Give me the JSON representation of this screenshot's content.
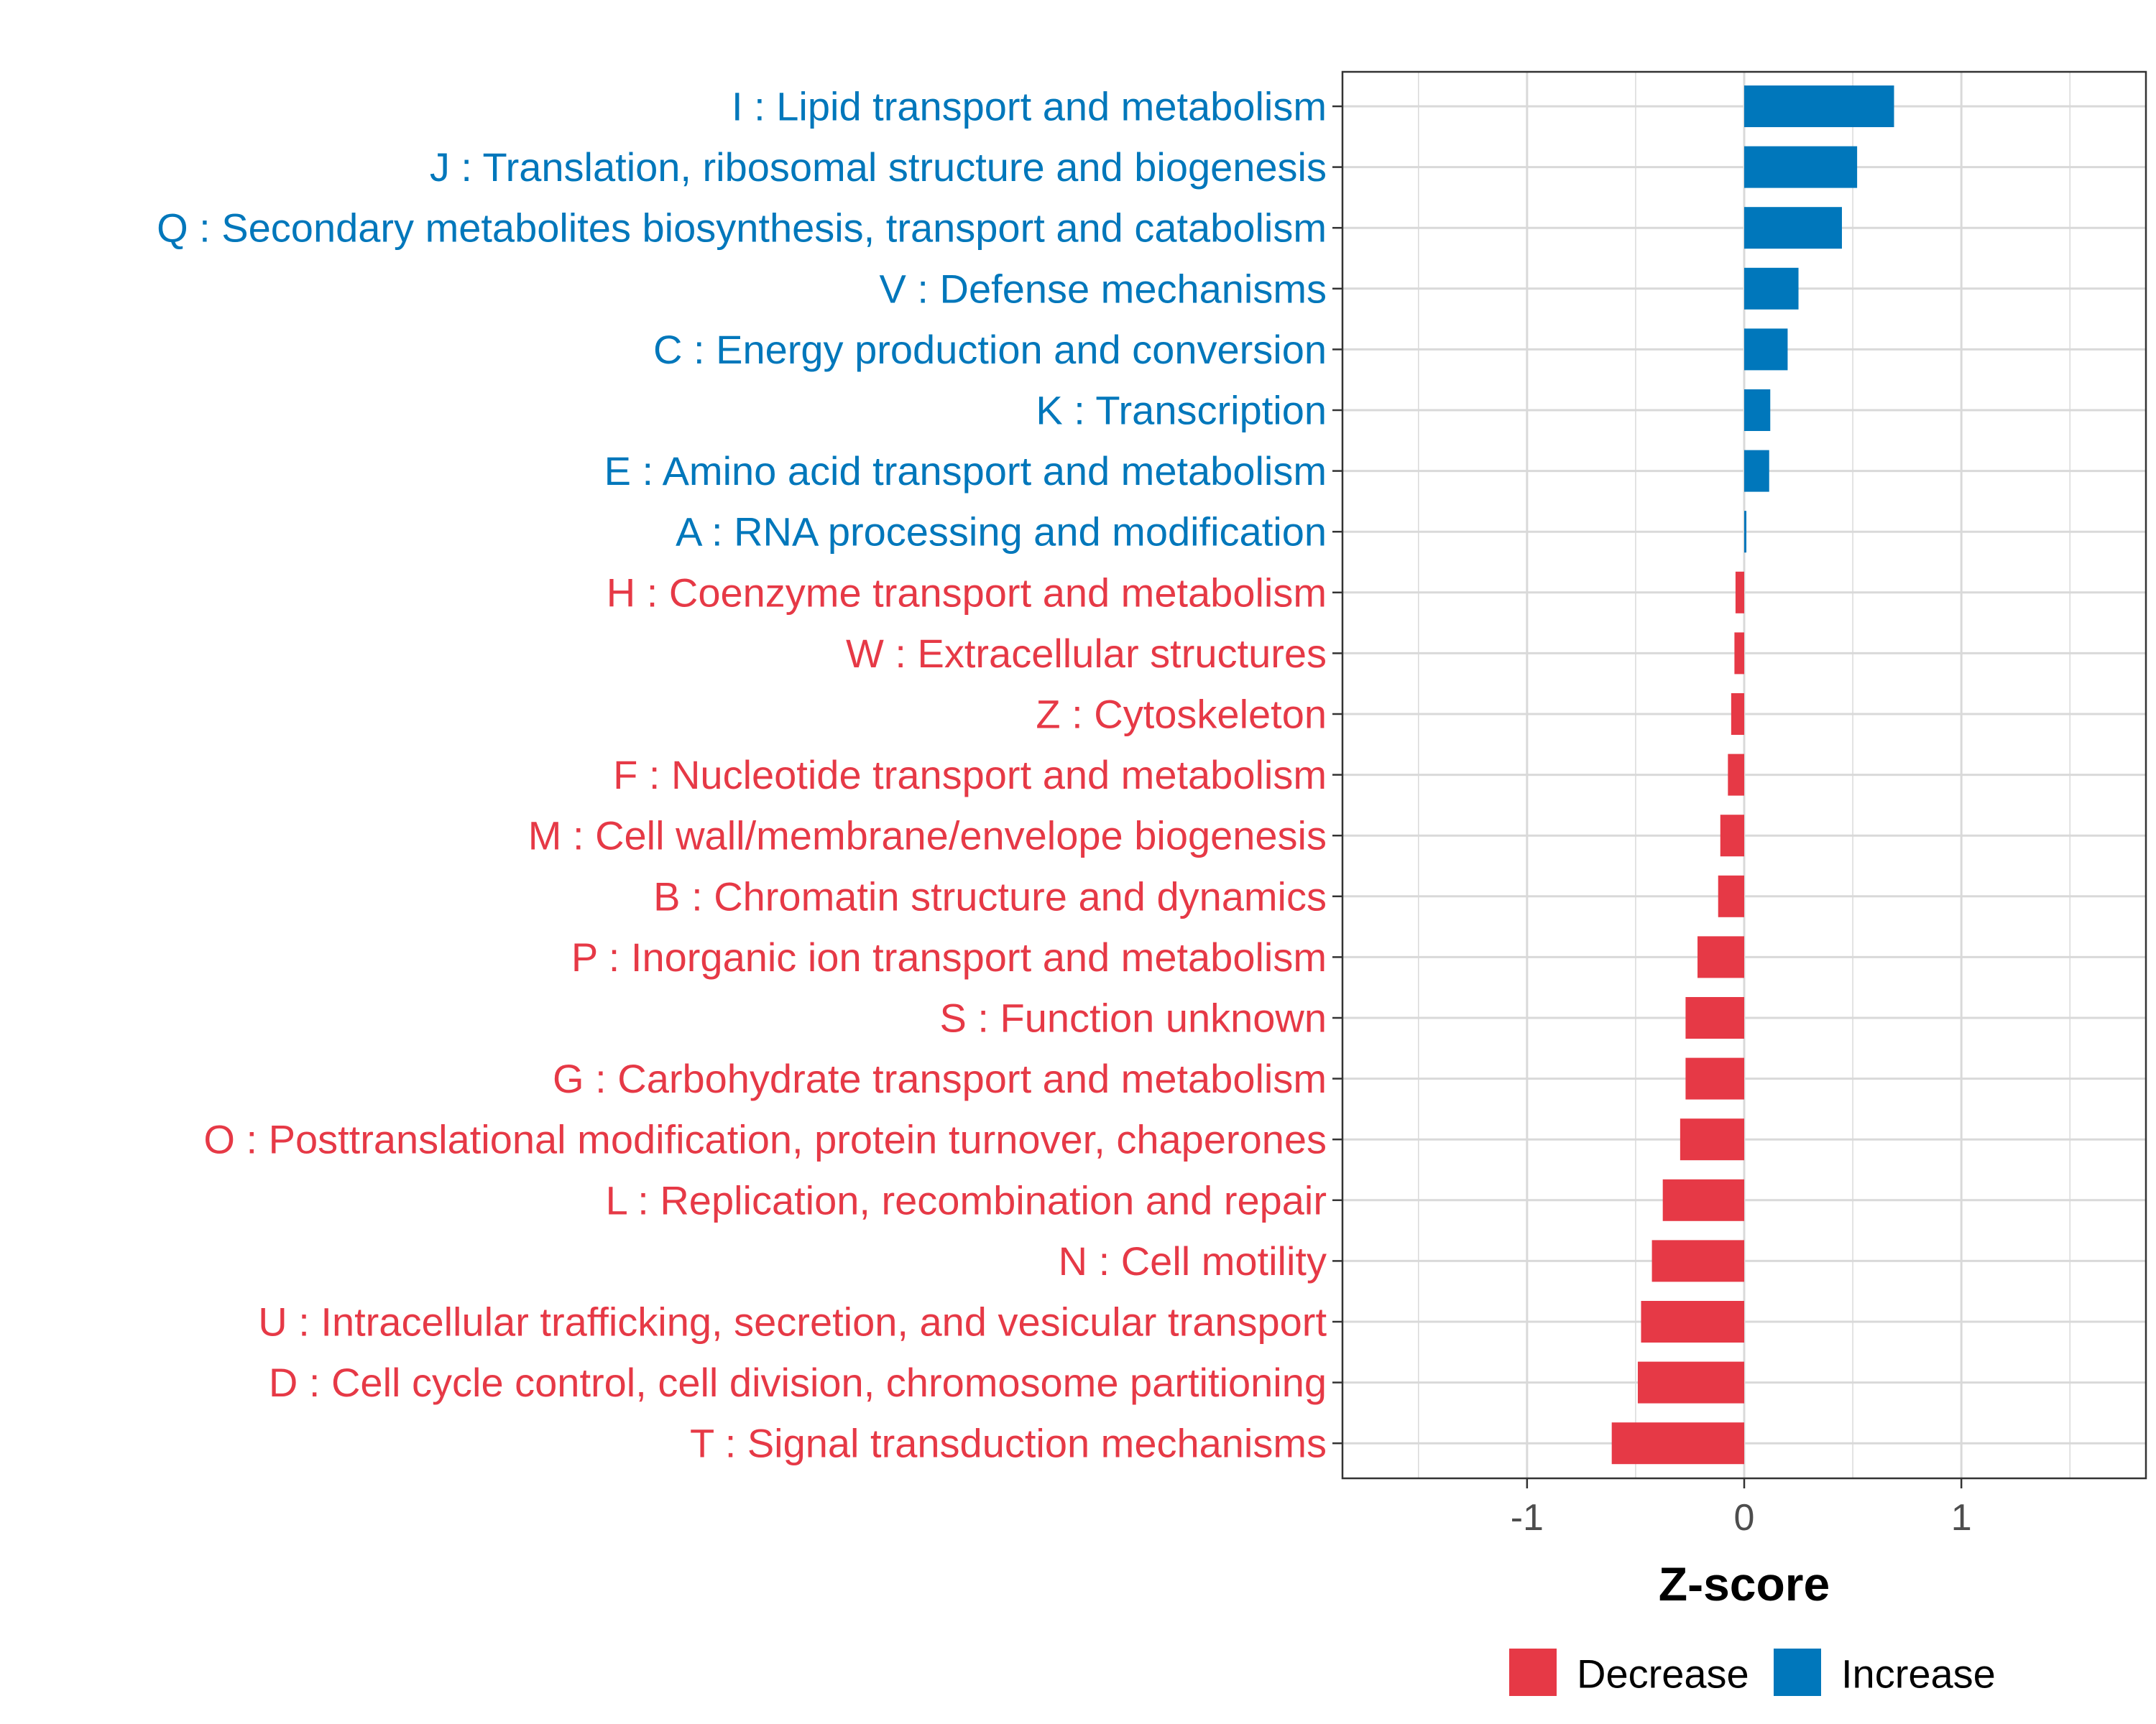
{
  "chart_data": {
    "type": "bar",
    "orientation": "horizontal",
    "title": "",
    "xlabel": "Z-score",
    "ylabel": "",
    "xlim": [
      -1.85,
      1.85
    ],
    "xticks": [
      -1,
      0,
      1
    ],
    "xtick_labels": [
      "-1",
      "0",
      "1"
    ],
    "grid": true,
    "legend_position": "bottom",
    "colors": {
      "Increase": "#0077BB",
      "Decrease": "#E63946"
    },
    "legend": [
      {
        "name": "Decrease",
        "color": "#E63946"
      },
      {
        "name": "Increase",
        "color": "#0077BB"
      }
    ],
    "categories": [
      "I : Lipid transport and metabolism",
      "J : Translation, ribosomal structure and biogenesis",
      "Q : Secondary metabolites biosynthesis, transport and catabolism",
      "V : Defense mechanisms",
      "C : Energy production and conversion",
      "K : Transcription",
      "E : Amino acid transport and metabolism",
      "A : RNA processing and modification",
      "H : Coenzyme transport and metabolism",
      "W : Extracellular structures",
      "Z : Cytoskeleton",
      "F : Nucleotide transport and metabolism",
      "M : Cell wall/membrane/envelope biogenesis",
      "B : Chromatin structure and dynamics",
      "P : Inorganic ion transport and metabolism",
      "S : Function unknown",
      "G : Carbohydrate transport and metabolism",
      "O : Posttranslational modification, protein turnover, chaperones",
      "L : Replication, recombination and repair",
      "N : Cell motility",
      "U : Intracellular trafficking, secretion, and vesicular transport",
      "D : Cell cycle control, cell division, chromosome partitioning",
      "T : Signal transduction mechanisms"
    ],
    "values": [
      0.69,
      0.52,
      0.45,
      0.25,
      0.2,
      0.12,
      0.115,
      0.01,
      -0.04,
      -0.045,
      -0.06,
      -0.075,
      -0.11,
      -0.12,
      -0.215,
      -0.27,
      -0.27,
      -0.295,
      -0.375,
      -0.425,
      -0.475,
      -0.49,
      -0.61
    ],
    "direction": [
      "Increase",
      "Increase",
      "Increase",
      "Increase",
      "Increase",
      "Increase",
      "Increase",
      "Increase",
      "Decrease",
      "Decrease",
      "Decrease",
      "Decrease",
      "Decrease",
      "Decrease",
      "Decrease",
      "Decrease",
      "Decrease",
      "Decrease",
      "Decrease",
      "Decrease",
      "Decrease",
      "Decrease",
      "Decrease"
    ]
  }
}
